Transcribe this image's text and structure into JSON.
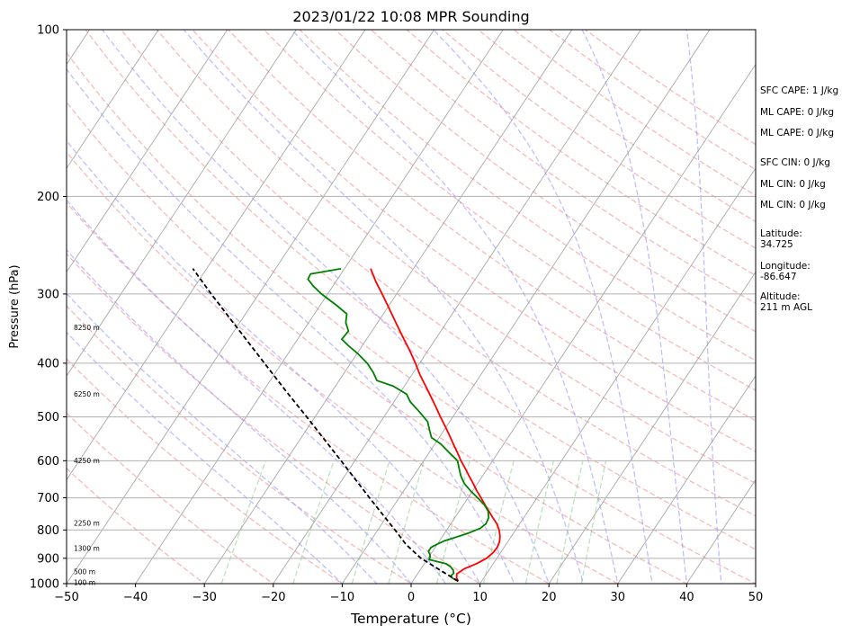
{
  "chart_data": {
    "type": "line",
    "title": "2023/01/22 10:08 MPR Sounding",
    "xlabel": "Temperature (°C)",
    "ylabel": "Pressure (hPa)",
    "xlim": [
      -50,
      50
    ],
    "ylim": [
      1000,
      100
    ],
    "y_scale": "log",
    "x_ticks": [
      -50,
      -40,
      -30,
      -20,
      -10,
      0,
      10,
      20,
      30,
      40,
      50
    ],
    "x_tick_labels": [
      "−50",
      "−40",
      "−30",
      "−20",
      "−10",
      "0",
      "10",
      "20",
      "30",
      "40",
      "50"
    ],
    "y_ticks": [
      100,
      200,
      300,
      400,
      500,
      600,
      700,
      800,
      900,
      1000
    ],
    "grid": true,
    "background_lines": {
      "skewed_isotherms": {
        "color": "#9e9e9e",
        "style": "solid"
      },
      "dry_adiabats": {
        "color": "#f08080",
        "style": "dashed"
      },
      "moist_adiabats": {
        "color": "#8080ff",
        "style": "dashed"
      },
      "mixing_ratio_lines": {
        "color": "#6cbf6c",
        "style": "dashed"
      }
    },
    "series": [
      {
        "color": "#ff0000",
        "points": [
          {
            "p": 990,
            "t": 6.6
          },
          {
            "p": 975,
            "t": 6.0
          },
          {
            "p": 960,
            "t": 5.7
          },
          {
            "p": 940,
            "t": 6.3
          },
          {
            "p": 920,
            "t": 7.6
          },
          {
            "p": 900,
            "t": 8.5
          },
          {
            "p": 880,
            "t": 8.9
          },
          {
            "p": 860,
            "t": 9.0
          },
          {
            "p": 840,
            "t": 8.8
          },
          {
            "p": 820,
            "t": 8.3
          },
          {
            "p": 800,
            "t": 7.6
          },
          {
            "p": 780,
            "t": 6.7
          },
          {
            "p": 760,
            "t": 5.5
          },
          {
            "p": 740,
            "t": 4.3
          },
          {
            "p": 720,
            "t": 3.1
          },
          {
            "p": 700,
            "t": 1.9
          },
          {
            "p": 680,
            "t": 0.6
          },
          {
            "p": 660,
            "t": -0.6
          },
          {
            "p": 640,
            "t": -1.9
          },
          {
            "p": 620,
            "t": -3.2
          },
          {
            "p": 600,
            "t": -4.6
          },
          {
            "p": 580,
            "t": -5.9
          },
          {
            "p": 560,
            "t": -7.3
          },
          {
            "p": 540,
            "t": -8.7
          },
          {
            "p": 520,
            "t": -10.2
          },
          {
            "p": 500,
            "t": -11.8
          },
          {
            "p": 480,
            "t": -13.4
          },
          {
            "p": 460,
            "t": -15.1
          },
          {
            "p": 440,
            "t": -16.9
          },
          {
            "p": 420,
            "t": -18.8
          },
          {
            "p": 400,
            "t": -20.6
          },
          {
            "p": 380,
            "t": -22.6
          },
          {
            "p": 360,
            "t": -24.8
          },
          {
            "p": 340,
            "t": -27.1
          },
          {
            "p": 320,
            "t": -29.5
          },
          {
            "p": 300,
            "t": -32.1
          },
          {
            "p": 285,
            "t": -34.2
          },
          {
            "p": 270,
            "t": -36.2
          }
        ]
      },
      {
        "color": "#008000",
        "points": [
          {
            "p": 990,
            "t": 6.6
          },
          {
            "p": 978,
            "t": 5.5
          },
          {
            "p": 968,
            "t": 5.0
          },
          {
            "p": 958,
            "t": 5.2
          },
          {
            "p": 945,
            "t": 4.8
          },
          {
            "p": 932,
            "t": 4.1
          },
          {
            "p": 920,
            "t": 3.1
          },
          {
            "p": 905,
            "t": 0.3
          },
          {
            "p": 896,
            "t": 0.2
          },
          {
            "p": 888,
            "t": 0.0
          },
          {
            "p": 874,
            "t": -0.6
          },
          {
            "p": 860,
            "t": -0.6
          },
          {
            "p": 848,
            "t": 0.0
          },
          {
            "p": 836,
            "t": 0.8
          },
          {
            "p": 820,
            "t": 2.5
          },
          {
            "p": 810,
            "t": 3.5
          },
          {
            "p": 795,
            "t": 4.7
          },
          {
            "p": 780,
            "t": 5.1
          },
          {
            "p": 760,
            "t": 4.9
          },
          {
            "p": 740,
            "t": 4.2
          },
          {
            "p": 720,
            "t": 3.0
          },
          {
            "p": 700,
            "t": 1.4
          },
          {
            "p": 680,
            "t": -0.3
          },
          {
            "p": 660,
            "t": -1.9
          },
          {
            "p": 640,
            "t": -3.1
          },
          {
            "p": 620,
            "t": -4.1
          },
          {
            "p": 600,
            "t": -5.1
          },
          {
            "p": 580,
            "t": -7.1
          },
          {
            "p": 560,
            "t": -9.1
          },
          {
            "p": 545,
            "t": -11.1
          },
          {
            "p": 530,
            "t": -12.0
          },
          {
            "p": 510,
            "t": -13.2
          },
          {
            "p": 490,
            "t": -15.3
          },
          {
            "p": 470,
            "t": -17.6
          },
          {
            "p": 455,
            "t": -18.9
          },
          {
            "p": 440,
            "t": -21.6
          },
          {
            "p": 430,
            "t": -24.5
          },
          {
            "p": 415,
            "t": -25.9
          },
          {
            "p": 400,
            "t": -27.6
          },
          {
            "p": 385,
            "t": -29.8
          },
          {
            "p": 372,
            "t": -32.0
          },
          {
            "p": 362,
            "t": -33.6
          },
          {
            "p": 350,
            "t": -33.4
          },
          {
            "p": 338,
            "t": -34.6
          },
          {
            "p": 326,
            "t": -35.3
          },
          {
            "p": 315,
            "t": -37.5
          },
          {
            "p": 300,
            "t": -40.9
          },
          {
            "p": 290,
            "t": -42.9
          },
          {
            "p": 282,
            "t": -44.3
          },
          {
            "p": 276,
            "t": -44.4
          },
          {
            "p": 270,
            "t": -40.5
          }
        ]
      },
      {
        "color": "#000000",
        "style": "dashed",
        "points": [
          {
            "p": 990,
            "t": 6.6
          },
          {
            "p": 950,
            "t": 3.3
          },
          {
            "p": 900,
            "t": -1.0
          },
          {
            "p": 850,
            "t": -4.5
          },
          {
            "p": 800,
            "t": -7.5
          },
          {
            "p": 750,
            "t": -10.8
          },
          {
            "p": 700,
            "t": -14.3
          },
          {
            "p": 650,
            "t": -18.0
          },
          {
            "p": 600,
            "t": -22.0
          },
          {
            "p": 550,
            "t": -26.4
          },
          {
            "p": 500,
            "t": -31.2
          },
          {
            "p": 450,
            "t": -36.6
          },
          {
            "p": 400,
            "t": -42.5
          },
          {
            "p": 350,
            "t": -49.2
          },
          {
            "p": 300,
            "t": -56.9
          },
          {
            "p": 270,
            "t": -62.0
          }
        ]
      }
    ],
    "height_labels": [
      {
        "p": 345,
        "text": "8250 m"
      },
      {
        "p": 455,
        "text": "6250 m"
      },
      {
        "p": 600,
        "text": "4250 m"
      },
      {
        "p": 778,
        "text": "2250 m"
      },
      {
        "p": 865,
        "text": "1300 m"
      },
      {
        "p": 953,
        "text": "500 m"
      },
      {
        "p": 996,
        "text": "100 m"
      }
    ]
  },
  "indices": {
    "sfc_cape": "SFC CAPE: 1 J/kg",
    "ml_cape_1": "ML CAPE: 0 J/kg",
    "ml_cape_2": "ML CAPE: 0 J/kg",
    "sfc_cin": "SFC CIN: 0 J/kg",
    "ml_cin_1": "ML CIN: 0 J/kg",
    "ml_cin_2": "ML CIN: 0 J/kg"
  },
  "location": {
    "latitude_label": "Latitude:",
    "latitude": "34.725",
    "longitude_label": "Longitude:",
    "longitude": "-86.647",
    "altitude_label": "Altitude:",
    "altitude": "211 m AGL"
  }
}
